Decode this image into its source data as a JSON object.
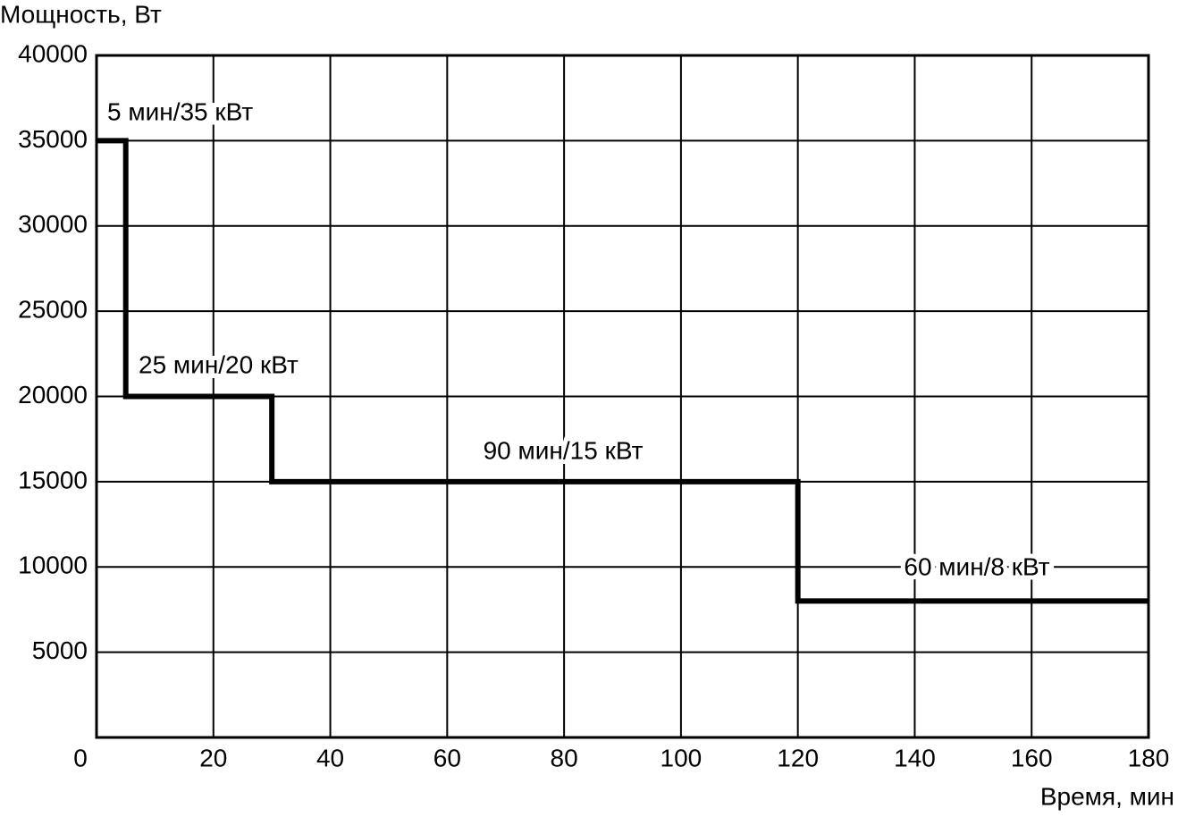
{
  "chart_data": {
    "type": "step",
    "x_label": "Время, мин",
    "y_label": "Мощность, Вт",
    "x": [
      0,
      5,
      30,
      120,
      180
    ],
    "values": [
      35000,
      20000,
      15000,
      8000,
      8000
    ],
    "color": "#000000",
    "xlim": [
      0,
      180
    ],
    "xticks": [
      0,
      20,
      40,
      60,
      80,
      100,
      120,
      140,
      160,
      180
    ],
    "ylim": [
      0,
      40000
    ],
    "yticks": [
      5000,
      10000,
      15000,
      20000,
      25000,
      30000,
      35000,
      40000
    ],
    "grid": true,
    "annotations": [
      "5 мин/35 кВт",
      "25 мин/20 кВт",
      "90 мин/15 кВт",
      "60 мин/8 кВт"
    ]
  }
}
